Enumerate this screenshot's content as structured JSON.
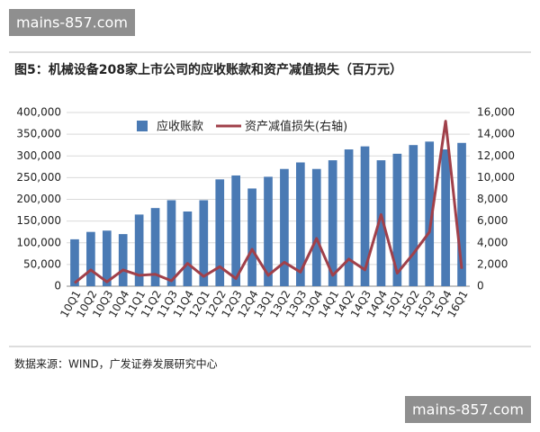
{
  "watermark_top": "mains-857.com",
  "watermark_bottom": "mains-857.com",
  "chart_data": {
    "type": "bar",
    "title": "图5：机械设备208家上市公司的应收账款和资产减值损失（百万元）",
    "source": "数据来源：WIND，广发证券发展研究中心",
    "categories": [
      "10Q1",
      "10Q2",
      "10Q3",
      "10Q4",
      "11Q1",
      "11Q2",
      "11Q3",
      "11Q4",
      "12Q1",
      "12Q2",
      "12Q3",
      "12Q4",
      "13Q1",
      "13Q2",
      "13Q3",
      "13Q4",
      "14Q1",
      "14Q2",
      "14Q3",
      "14Q4",
      "15Q1",
      "15Q2",
      "15Q3",
      "15Q4",
      "16Q1"
    ],
    "series": [
      {
        "name": "应收账款",
        "type": "bar",
        "color": "#4a7ab4",
        "values": [
          108000,
          125000,
          128000,
          120000,
          165000,
          180000,
          198000,
          172000,
          198000,
          246000,
          255000,
          225000,
          252000,
          270000,
          285000,
          270000,
          290000,
          315000,
          322000,
          290000,
          305000,
          325000,
          333000,
          315000,
          330000
        ]
      },
      {
        "name": "资产减值损失(右轴)",
        "type": "line",
        "axis": "y2",
        "color": "#a0404a",
        "values": [
          300,
          1500,
          400,
          1500,
          1000,
          1100,
          500,
          2100,
          900,
          1800,
          700,
          3400,
          1000,
          2200,
          1300,
          4400,
          1000,
          2500,
          1500,
          6600,
          1200,
          3000,
          5000,
          15200,
          1600
        ]
      }
    ],
    "ylim": [
      0,
      400000
    ],
    "yticks": [
      0,
      {
        "value": 50000,
        "label": "50,000"
      },
      {
        "value": 100000,
        "label": "100,000"
      },
      {
        "value": 150000,
        "label": "150,000"
      },
      {
        "value": 200000,
        "label": "200,000"
      },
      {
        "value": 250000,
        "label": "250,000"
      },
      {
        "value": 300000,
        "label": "300,000"
      },
      {
        "value": 350000,
        "label": "350,000"
      },
      {
        "value": 400000,
        "label": "400,000"
      }
    ],
    "y2lim": [
      0,
      16000
    ],
    "y2ticks": [
      0,
      {
        "value": 2000,
        "label": "2,000"
      },
      {
        "value": 4000,
        "label": "4,000"
      },
      {
        "value": 6000,
        "label": "6,000"
      },
      {
        "value": 8000,
        "label": "8,000"
      },
      {
        "value": 10000,
        "label": "10,000"
      },
      {
        "value": 12000,
        "label": "12,000"
      },
      {
        "value": 14000,
        "label": "14,000"
      },
      {
        "value": 16000,
        "label": "16,000"
      }
    ],
    "grid": true
  }
}
